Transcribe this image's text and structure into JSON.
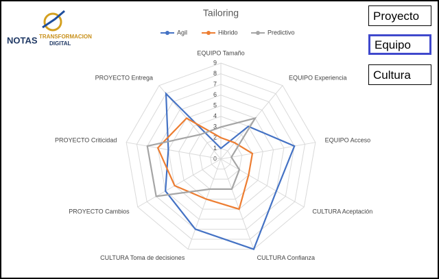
{
  "logo": {
    "brand": "NOTAS",
    "line1": "TRANSFORMACION",
    "line2": "DIGITAL"
  },
  "buttons": [
    "Proyecto",
    "Equipo",
    "Cultura"
  ],
  "chart_data": {
    "type": "radar",
    "title": "Tailoring",
    "categories": [
      "EQUIPO Tamaño",
      "EQUIPO Experiencia",
      "EQUIPO Acceso",
      "CULTURA Aceptación",
      "CULTURA Confianza",
      "CULTURA Toma de decisiones",
      "PROYECTO Cambios",
      "PROYECTO Criticidad",
      "PROYECTO Entrega"
    ],
    "series": [
      {
        "name": "Agil",
        "color": "#4472c4",
        "values": [
          1,
          4,
          7,
          6,
          9,
          7,
          6,
          5,
          8
        ]
      },
      {
        "name": "Hibrido",
        "color": "#ed7d31",
        "values": [
          2,
          2,
          3,
          3,
          5,
          4,
          5,
          6,
          5
        ]
      },
      {
        "name": "Predictivo",
        "color": "#a5a5a5",
        "values": [
          3,
          5,
          1,
          2,
          3,
          3,
          7,
          7,
          3
        ]
      }
    ],
    "ylim": [
      0,
      9
    ],
    "yticks": [
      0,
      1,
      2,
      3,
      4,
      5,
      6,
      7,
      8,
      9
    ],
    "grid": true,
    "legend": "top"
  }
}
